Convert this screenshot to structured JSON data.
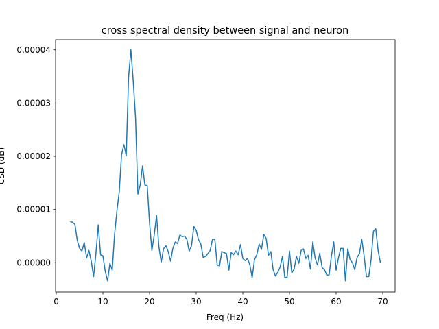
{
  "chart_data": {
    "type": "line",
    "title": "cross spectral density between signal and neuron",
    "x_label": "Freq (Hz)",
    "y_label": "CSD (dB)",
    "color": "#1f77b4",
    "x": [
      3,
      3.5,
      4,
      4.5,
      5,
      5.5,
      6,
      6.5,
      7,
      7.5,
      8,
      8.5,
      9,
      9.5,
      10,
      10.5,
      11,
      11.5,
      12,
      12.5,
      13,
      13.5,
      14,
      14.5,
      15,
      15.5,
      16,
      16.5,
      17,
      17.5,
      18,
      18.5,
      19,
      19.5,
      20,
      20.5,
      21,
      21.5,
      22,
      22.5,
      23,
      23.5,
      24,
      24.5,
      25,
      25.5,
      26,
      26.5,
      27,
      27.5,
      28,
      28.5,
      29,
      29.5,
      30,
      30.5,
      31,
      31.5,
      32,
      32.5,
      33,
      33.5,
      34,
      34.5,
      35,
      35.5,
      36,
      36.5,
      37,
      37.5,
      38,
      38.5,
      39,
      39.5,
      40,
      40.5,
      41,
      41.5,
      42,
      42.5,
      43,
      43.5,
      44,
      44.5,
      45,
      45.5,
      46,
      46.5,
      47,
      47.5,
      48,
      48.5,
      49,
      49.5,
      50,
      50.5,
      51,
      51.5,
      52,
      52.5,
      53,
      53.5,
      54,
      54.5,
      55,
      55.5,
      56,
      56.5,
      57,
      57.5,
      58,
      58.5,
      59,
      59.5,
      60,
      60.5,
      61,
      61.5,
      62,
      62.5,
      63,
      63.5,
      64,
      64.5,
      65,
      65.5,
      66,
      66.5,
      67,
      67.5,
      68,
      68.5,
      69,
      69.5
    ],
    "values": [
      7.7e-06,
      7.6e-06,
      7.2e-06,
      4.2e-06,
      2.7e-06,
      2.2e-06,
      3.8e-06,
      9e-07,
      2.3e-06,
      3e-07,
      -2.6e-06,
      1.7e-06,
      7.1e-06,
      1.5e-06,
      1.3e-06,
      -1.6e-06,
      -3.4e-06,
      -1e-07,
      -1.4e-06,
      5.3e-06,
      9.7e-06,
      1.33e-05,
      2.03e-05,
      2.22e-05,
      2.01e-05,
      3.48e-05,
      4e-05,
      3.42e-05,
      2.72e-05,
      1.29e-05,
      1.46e-05,
      1.82e-05,
      1.46e-05,
      1.45e-05,
      7.5e-06,
      2.3e-06,
      5.2e-06,
      8.9e-06,
      3e-06,
      1e-07,
      2.6e-06,
      3.2e-06,
      2.1e-06,
      3e-07,
      2.7e-06,
      3.9e-06,
      3.6e-06,
      5.2e-06,
      4.9e-06,
      5e-06,
      4.4e-06,
      2.2e-06,
      3.2e-06,
      6.8e-06,
      6.1e-06,
      4.3e-06,
      3.5e-06,
      1e-06,
      1.2e-06,
      1.7e-06,
      2.3e-06,
      4.4e-06,
      4.4e-06,
      -4e-07,
      -6e-07,
      2.1e-06,
      1.9e-06,
      1.7e-06,
      -1.4e-06,
      1.9e-06,
      1.5e-06,
      2.2e-06,
      1.5e-06,
      3.4e-06,
      8e-07,
      4e-07,
      8e-07,
      -4e-07,
      -2.8e-06,
      6e-07,
      1.5e-06,
      3.5e-06,
      2.5e-06,
      5.3e-06,
      4.6e-06,
      1.4e-06,
      2.1e-06,
      -1.3e-06,
      -2.5e-06,
      -1.8e-06,
      -8e-07,
      1.2e-06,
      -2.8e-06,
      -2.7e-06,
      2.2e-06,
      -1.9e-06,
      -1.2e-06,
      1.2e-06,
      -1e-07,
      2.3e-06,
      2.6e-06,
      8e-07,
      1.4e-06,
      -1.2e-06,
      3.9e-06,
      9e-07,
      -4e-07,
      1.8e-06,
      -9e-07,
      -1.3e-06,
      -2.3e-06,
      -2.3e-06,
      1.3e-06,
      3.9e-06,
      -1.4e-06,
      9e-07,
      2.7e-06,
      2.7e-06,
      -3.4e-06,
      2.6e-06,
      6e-07,
      0,
      -1.3e-06,
      1e-06,
      1.7e-06,
      4.4e-06,
      1.3e-06,
      -2.6e-06,
      -2.6e-06,
      6e-07,
      5.9e-06,
      6.4e-06,
      2.3e-06,
      0
    ],
    "xlim": [
      -0.15,
      72.65
    ],
    "ylim": [
      -5.5e-06,
      4.19e-05
    ],
    "xticks": [
      0,
      10,
      20,
      30,
      40,
      50,
      60,
      70
    ],
    "yticks": [
      {
        "value": 0,
        "label": "0.00000"
      },
      {
        "value": 1e-05,
        "label": "0.00001"
      },
      {
        "value": 2e-05,
        "label": "0.00002"
      },
      {
        "value": 3e-05,
        "label": "0.00003"
      },
      {
        "value": 4e-05,
        "label": "0.00004"
      }
    ]
  }
}
